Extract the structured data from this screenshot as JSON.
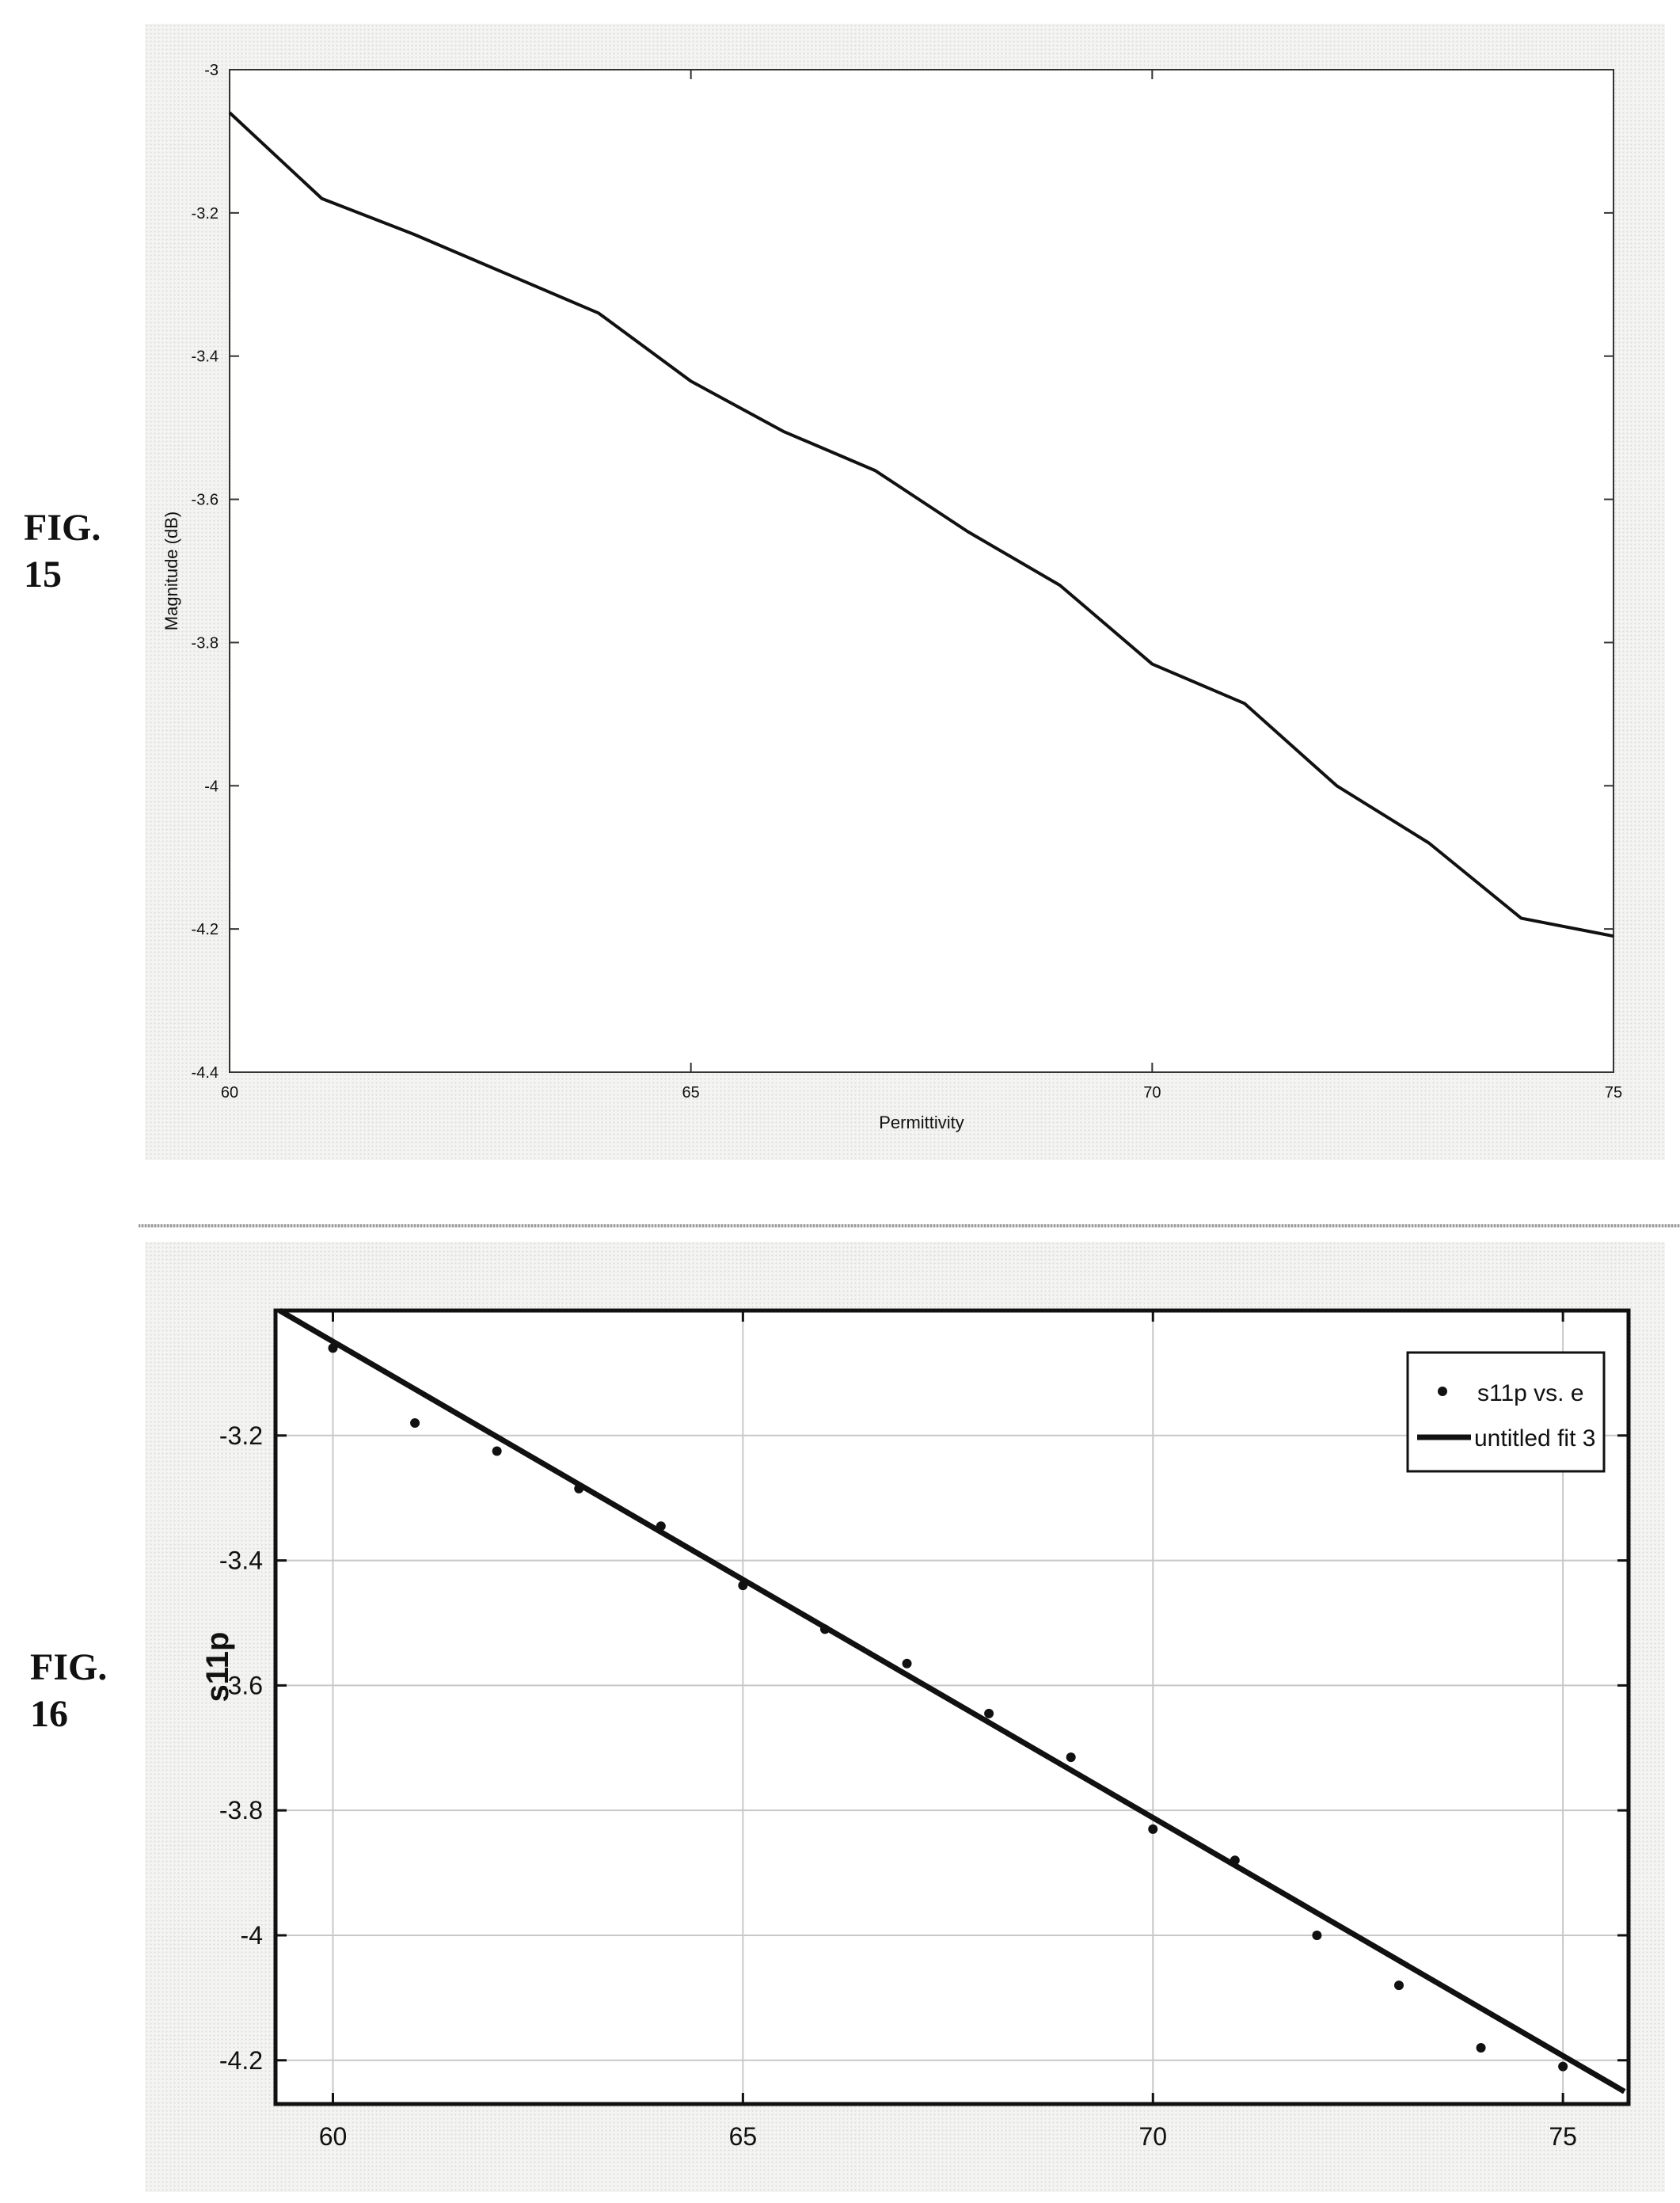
{
  "figures": [
    {
      "label_line1": "FIG.",
      "label_line2": "15"
    },
    {
      "label_line1": "FIG.",
      "label_line2": "16"
    }
  ],
  "chart_data": [
    {
      "type": "line",
      "title": "",
      "xlabel": "Permittivity",
      "ylabel": "Magnitude (dB)",
      "xlim": [
        60,
        75
      ],
      "ylim": [
        -4.4,
        -3
      ],
      "xticks": [
        60,
        65,
        70,
        75
      ],
      "yticks": [
        -3,
        -3.2,
        -3.4,
        -3.6,
        -3.8,
        -4,
        -4.2,
        -4.4
      ],
      "grid": false,
      "series": [
        {
          "x": [
            60,
            61,
            62,
            63,
            64,
            65,
            66,
            67,
            68,
            69,
            70,
            71,
            72,
            73,
            74,
            75
          ],
          "y": [
            -3.06,
            -3.18,
            -3.23,
            -3.285,
            -3.34,
            -3.435,
            -3.505,
            -3.56,
            -3.645,
            -3.72,
            -3.83,
            -3.885,
            -4.0,
            -4.08,
            -4.185,
            -4.21
          ],
          "color": "#111111"
        }
      ]
    },
    {
      "type": "scatter",
      "title": "",
      "xlabel": "",
      "ylabel": "s11p",
      "xlim": [
        59.3,
        75.8
      ],
      "ylim": [
        -4.27,
        -3.0
      ],
      "xticks": [
        60,
        65,
        70,
        75
      ],
      "yticks": [
        -3.2,
        -3.4,
        -3.6,
        -3.8,
        -4,
        -4.2
      ],
      "ytick_labels": [
        "-3.2",
        "-3.4",
        "-3.6",
        "-3.8",
        "-4",
        "-4.2"
      ],
      "grid": true,
      "legend_position": "top-right",
      "series": [
        {
          "name": "s11p vs. e",
          "kind": "points",
          "x": [
            60,
            61,
            62,
            63,
            64,
            65,
            66,
            67,
            68,
            69,
            70,
            71,
            72,
            73,
            74,
            75
          ],
          "y": [
            -3.06,
            -3.18,
            -3.225,
            -3.285,
            -3.345,
            -3.44,
            -3.51,
            -3.565,
            -3.645,
            -3.715,
            -3.83,
            -3.88,
            -4.0,
            -4.08,
            -4.18,
            -4.21
          ]
        },
        {
          "name": "untitled fit 3",
          "kind": "line",
          "x": [
            59.35,
            75.75
          ],
          "y": [
            -3.0,
            -4.25
          ]
        }
      ]
    }
  ]
}
